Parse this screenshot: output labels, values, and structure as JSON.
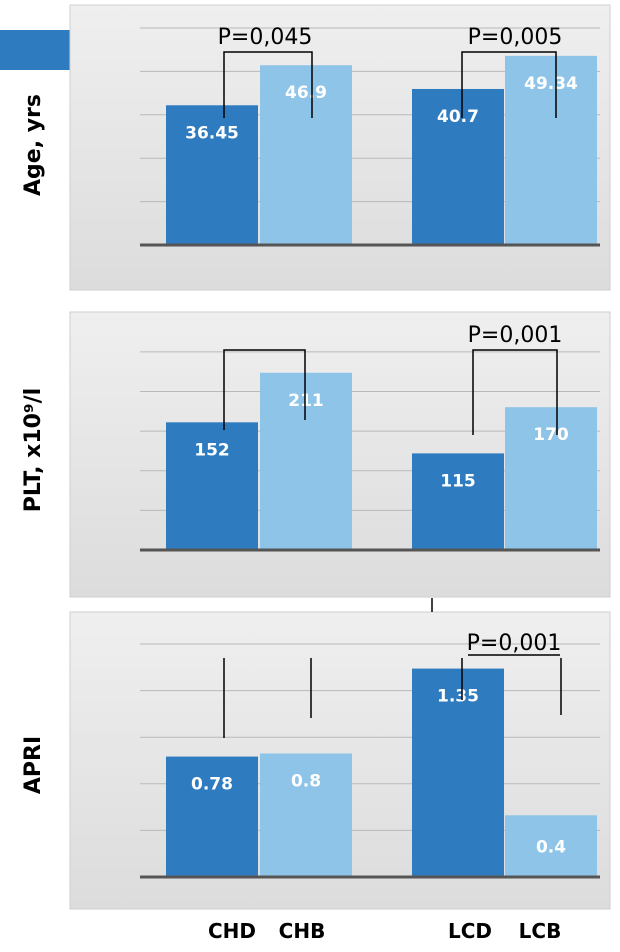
{
  "colors": {
    "dark_bar": "#2e7bbf",
    "light_bar": "#8ec4e8",
    "panel_bg": "#e2e2e2",
    "gridline": "#b9b9b9",
    "baseline": "#555555",
    "accent_tab": "#2e7bbf"
  },
  "categories_bottom": [
    "CHD",
    "CHB",
    "LCD",
    "LCB"
  ],
  "chart_data": [
    {
      "type": "bar",
      "title": "",
      "ylabel": "Age, yrs",
      "categories": [
        "CHD",
        "CHB",
        "LCD",
        "LCB"
      ],
      "values": [
        36.45,
        46.9,
        40.7,
        49.34
      ],
      "data_labels": [
        "36.45",
        "46.9",
        "40.7",
        "49.34"
      ],
      "ylim": [
        0,
        60
      ],
      "grid": true,
      "pvalues": [
        "P=0,045",
        "P=0,005"
      ]
    },
    {
      "type": "bar",
      "title": "",
      "ylabel": "PLT, x10⁹/l",
      "categories": [
        "CHD",
        "CHB",
        "LCD",
        "LCB"
      ],
      "values": [
        152,
        211,
        115,
        170
      ],
      "data_labels": [
        "152",
        "211",
        "115",
        "170"
      ],
      "ylim": [
        0,
        250
      ],
      "grid": true,
      "pvalues": [
        "",
        "P=0,001"
      ]
    },
    {
      "type": "bar",
      "title": "",
      "ylabel": "APRI",
      "categories": [
        "CHD",
        "CHB",
        "LCD",
        "LCB"
      ],
      "values": [
        0.78,
        0.8,
        1.35,
        0.4
      ],
      "data_labels": [
        "0.78",
        "0.8",
        "1.35",
        "0.4"
      ],
      "ylim": [
        0,
        1.6
      ],
      "grid": true,
      "pvalues": [
        "",
        "P=0,001"
      ]
    }
  ]
}
